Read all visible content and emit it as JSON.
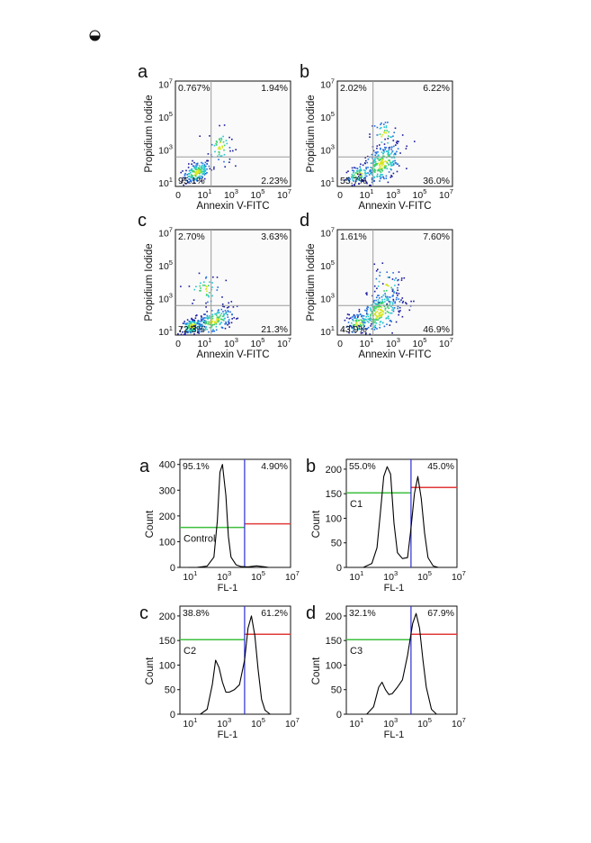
{
  "page_mark_icon": "circle-half-filled-icon",
  "scatter_figure": {
    "panels": [
      {
        "letter": "a",
        "quadrants": {
          "ul": "0.767%",
          "ur": "1.94%",
          "ll": "95.1%",
          "lr": "2.23%"
        }
      },
      {
        "letter": "b",
        "quadrants": {
          "ul": "2.02%",
          "ur": "6.22%",
          "ll": "55.7%",
          "lr": "36.0%"
        }
      },
      {
        "letter": "c",
        "quadrants": {
          "ul": "2.70%",
          "ur": "3.63%",
          "ll": "72.3%",
          "lr": "21.3%"
        }
      },
      {
        "letter": "d",
        "quadrants": {
          "ul": "1.61%",
          "ur": "7.60%",
          "ll": "43.9%",
          "lr": "46.9%"
        }
      }
    ],
    "xlabel": "Annexin V-FITC",
    "ylabel": "Propidium Iodide",
    "x_ticks": [
      {
        "base": "0",
        "exp": ""
      },
      {
        "base": "10",
        "exp": "1"
      },
      {
        "base": "10",
        "exp": "3"
      },
      {
        "base": "10",
        "exp": "5"
      },
      {
        "base": "10",
        "exp": "7"
      }
    ],
    "y_ticks": [
      {
        "base": "10",
        "exp": "1"
      },
      {
        "base": "10",
        "exp": "3"
      },
      {
        "base": "10",
        "exp": "5"
      },
      {
        "base": "10",
        "exp": "7"
      }
    ],
    "colors": {
      "gate": "#9a9a9a",
      "density": [
        "#1a1aa0",
        "#1e6fe0",
        "#23c6d0",
        "#3ad06a",
        "#d6e61c"
      ]
    }
  },
  "histogram_figure": {
    "xlabel": "FL-1",
    "ylabel": "Count",
    "x_ticks": [
      {
        "base": "10",
        "exp": "1"
      },
      {
        "base": "10",
        "exp": "3"
      },
      {
        "base": "10",
        "exp": "5"
      },
      {
        "base": "10",
        "exp": "7"
      }
    ],
    "colors": {
      "gate_line": "#2b2bd6",
      "left_marker": "#3fbf3f",
      "right_marker": "#e03a3a",
      "curve": "#000000"
    },
    "panels": [
      {
        "letter": "a",
        "left_pct": "95.1%",
        "right_pct": "4.90%",
        "sample": "Control",
        "y_ticks": [
          "400",
          "300",
          "200",
          "100",
          "0"
        ]
      },
      {
        "letter": "b",
        "left_pct": "55.0%",
        "right_pct": "45.0%",
        "sample": "C1",
        "y_ticks": [
          "200",
          "150",
          "100",
          "50",
          "0"
        ]
      },
      {
        "letter": "c",
        "left_pct": "38.8%",
        "right_pct": "61.2%",
        "sample": "C2",
        "y_ticks": [
          "200",
          "150",
          "100",
          "50",
          "0"
        ]
      },
      {
        "letter": "d",
        "left_pct": "32.1%",
        "right_pct": "67.9%",
        "sample": "C3",
        "y_ticks": [
          "200",
          "150",
          "100",
          "50",
          "0"
        ]
      }
    ]
  },
  "chart_data": [
    {
      "type": "scatter",
      "panel": "a",
      "xlabel": "Annexin V-FITC",
      "ylabel": "Propidium Iodide",
      "log_scale": true,
      "quadrant_percent": {
        "upper_left": 0.767,
        "upper_right": 1.94,
        "lower_left": 95.1,
        "lower_right": 2.23
      }
    },
    {
      "type": "scatter",
      "panel": "b",
      "xlabel": "Annexin V-FITC",
      "ylabel": "Propidium Iodide",
      "log_scale": true,
      "quadrant_percent": {
        "upper_left": 2.02,
        "upper_right": 6.22,
        "lower_left": 55.7,
        "lower_right": 36.0
      }
    },
    {
      "type": "scatter",
      "panel": "c",
      "xlabel": "Annexin V-FITC",
      "ylabel": "Propidium Iodide",
      "log_scale": true,
      "quadrant_percent": {
        "upper_left": 2.7,
        "upper_right": 3.63,
        "lower_left": 72.3,
        "lower_right": 21.3
      }
    },
    {
      "type": "scatter",
      "panel": "d",
      "xlabel": "Annexin V-FITC",
      "ylabel": "Propidium Iodide",
      "log_scale": true,
      "quadrant_percent": {
        "upper_left": 1.61,
        "upper_right": 7.6,
        "lower_left": 43.9,
        "lower_right": 46.9
      }
    },
    {
      "type": "line",
      "panel": "a",
      "sample": "Control",
      "xlabel": "FL-1",
      "ylabel": "Count",
      "ylim": [
        0,
        420
      ],
      "gate_percent": {
        "left": 95.1,
        "right": 4.9
      },
      "x": [
        1.5,
        2.0,
        2.6,
        3.0,
        3.2,
        3.35,
        3.5,
        3.7,
        3.85,
        4.0,
        4.3,
        4.6,
        5.0,
        5.5,
        6.0,
        6.2
      ],
      "y": [
        0,
        0,
        5,
        40,
        180,
        370,
        400,
        280,
        120,
        40,
        10,
        3,
        2,
        6,
        2,
        0
      ]
    },
    {
      "type": "line",
      "panel": "b",
      "sample": "C1",
      "xlabel": "FL-1",
      "ylabel": "Count",
      "ylim": [
        0,
        220
      ],
      "gate_percent": {
        "left": 55.0,
        "right": 45.0
      },
      "x": [
        2.0,
        2.5,
        2.8,
        3.0,
        3.2,
        3.4,
        3.6,
        3.8,
        4.0,
        4.3,
        4.6,
        4.8,
        5.0,
        5.2,
        5.4,
        5.6,
        5.8,
        6.1,
        6.4
      ],
      "y": [
        0,
        8,
        40,
        110,
        185,
        205,
        190,
        90,
        30,
        18,
        20,
        80,
        150,
        185,
        140,
        70,
        20,
        3,
        0
      ]
    },
    {
      "type": "line",
      "panel": "c",
      "sample": "C2",
      "xlabel": "FL-1",
      "ylabel": "Count",
      "ylim": [
        0,
        220
      ],
      "gate_percent": {
        "left": 38.8,
        "right": 61.2
      },
      "x": [
        2.2,
        2.6,
        2.9,
        3.1,
        3.3,
        3.5,
        3.7,
        3.9,
        4.2,
        4.5,
        4.8,
        5.0,
        5.2,
        5.4,
        5.6,
        5.8,
        6.0,
        6.3
      ],
      "y": [
        0,
        10,
        60,
        110,
        95,
        65,
        45,
        45,
        50,
        60,
        110,
        175,
        200,
        160,
        90,
        30,
        8,
        0
      ]
    },
    {
      "type": "line",
      "panel": "d",
      "sample": "C3",
      "xlabel": "FL-1",
      "ylabel": "Count",
      "ylim": [
        0,
        220
      ],
      "gate_percent": {
        "left": 32.1,
        "right": 67.9
      },
      "x": [
        2.2,
        2.6,
        2.9,
        3.1,
        3.3,
        3.5,
        3.7,
        4.0,
        4.3,
        4.6,
        4.9,
        5.1,
        5.3,
        5.5,
        5.7,
        6.0,
        6.3
      ],
      "y": [
        0,
        15,
        55,
        65,
        50,
        40,
        42,
        55,
        70,
        120,
        185,
        205,
        175,
        110,
        55,
        10,
        0
      ]
    }
  ]
}
